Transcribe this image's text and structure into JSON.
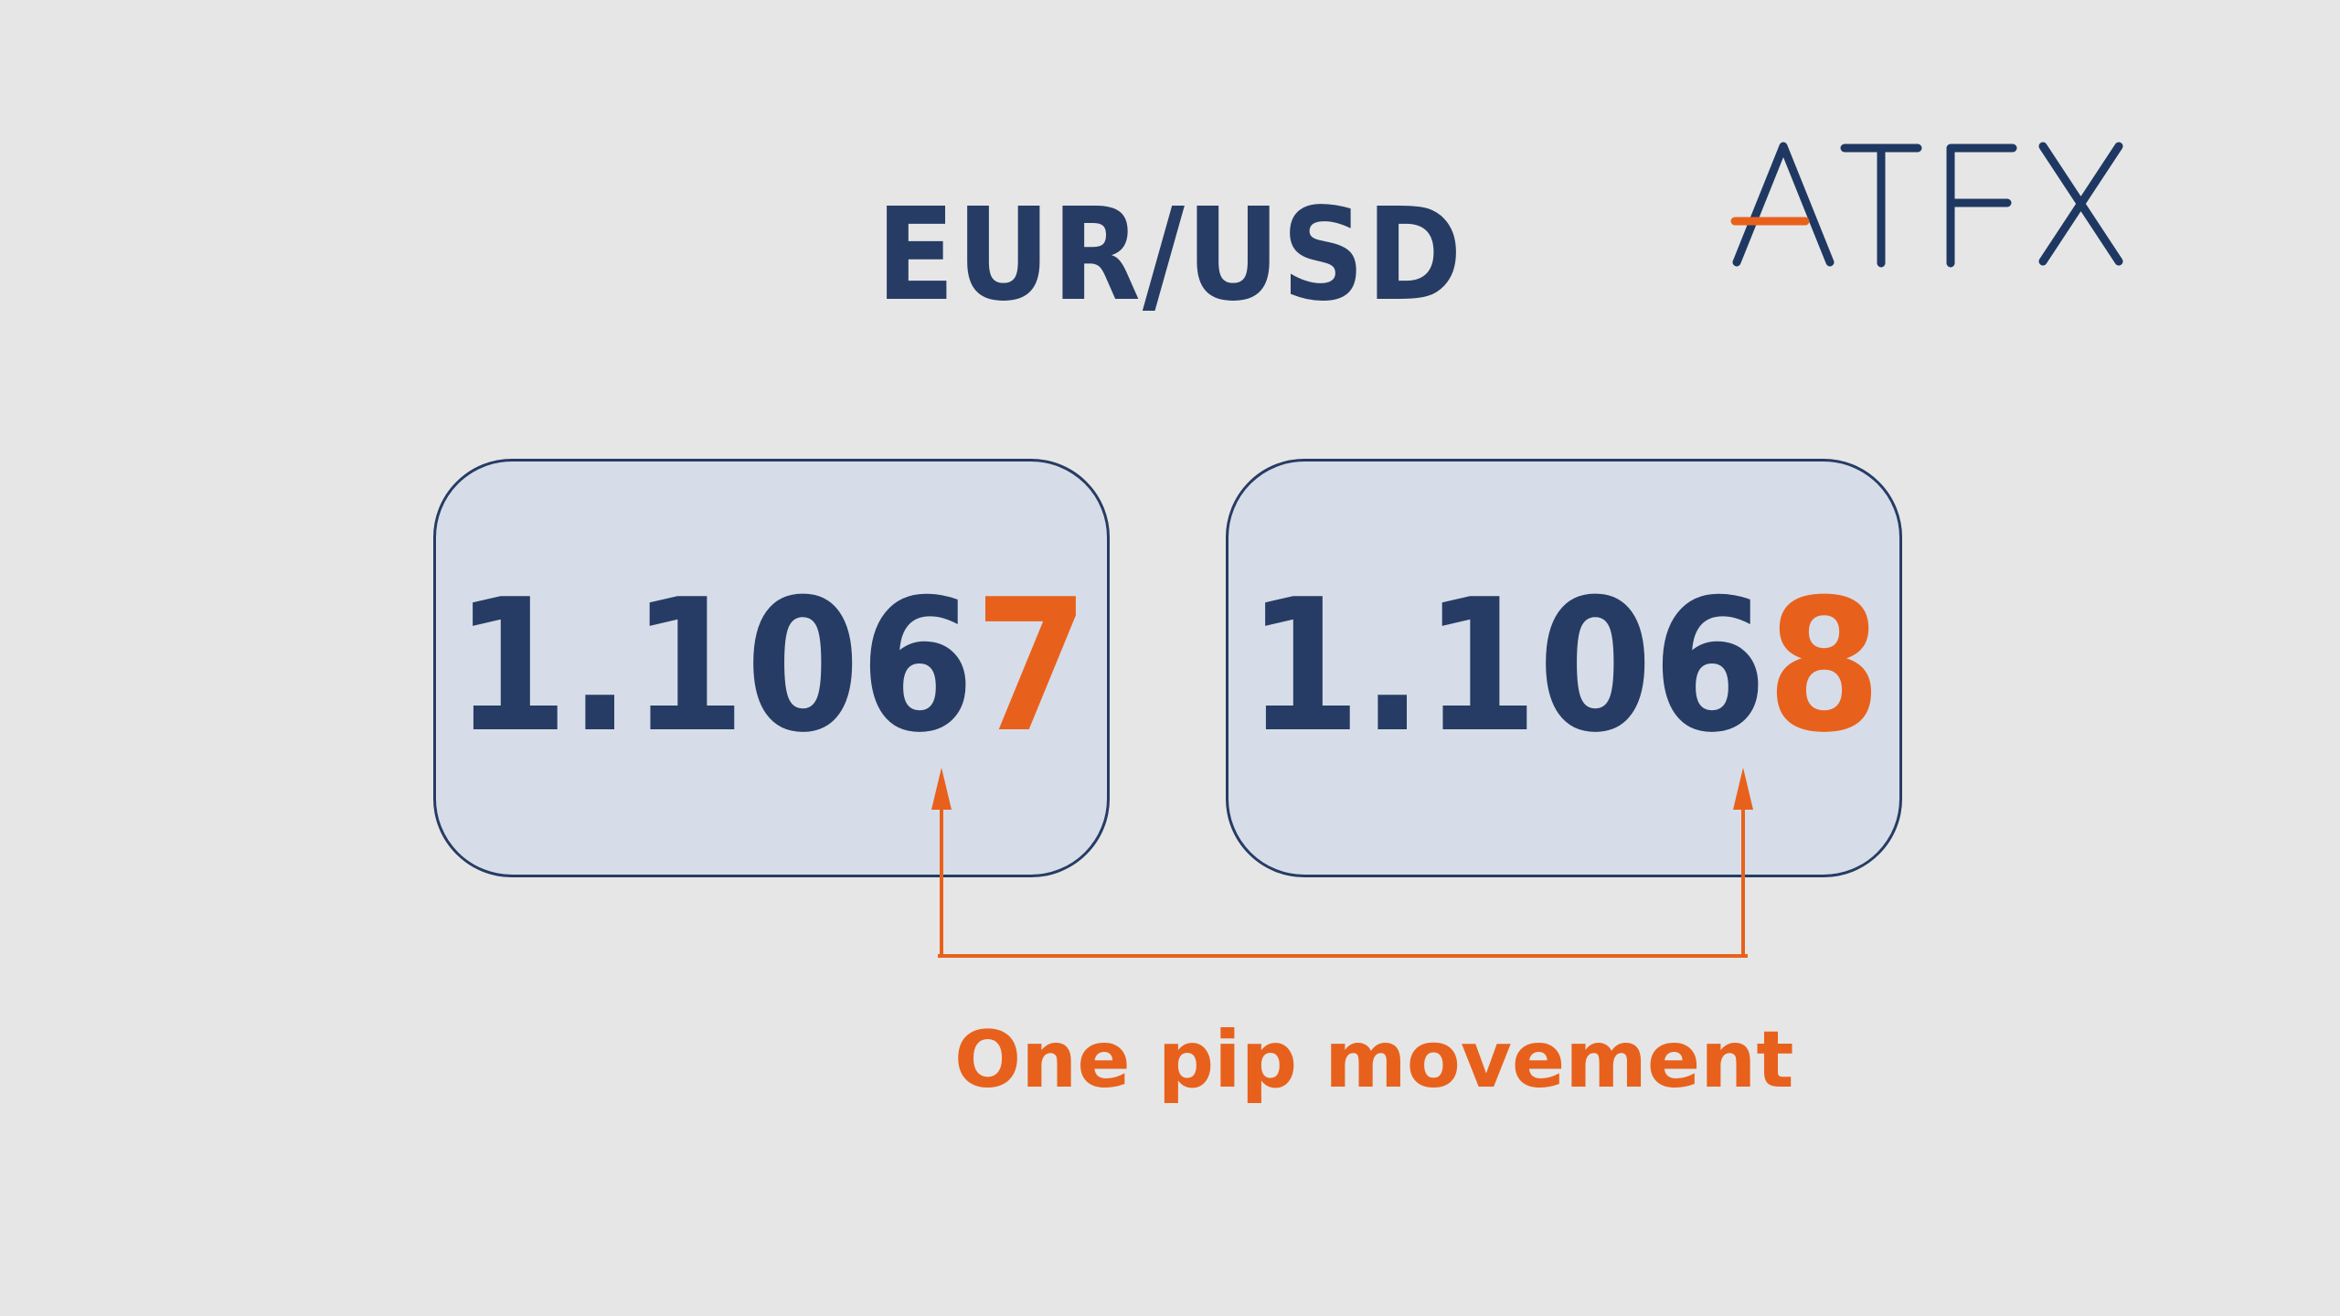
{
  "logo": {
    "text": "ATFX",
    "colors": {
      "text": "#1f3862",
      "accent": "#e8611c"
    }
  },
  "title": "EUR/USD",
  "quotes": [
    {
      "prefix": "1.106",
      "pip_digit": "7"
    },
    {
      "prefix": "1.106",
      "pip_digit": "8"
    }
  ],
  "caption": "One pip movement",
  "colors": {
    "background": "#e6e6e6",
    "navy": "#263c64",
    "orange": "#e8611c",
    "box_fill": "#d6dde8"
  }
}
